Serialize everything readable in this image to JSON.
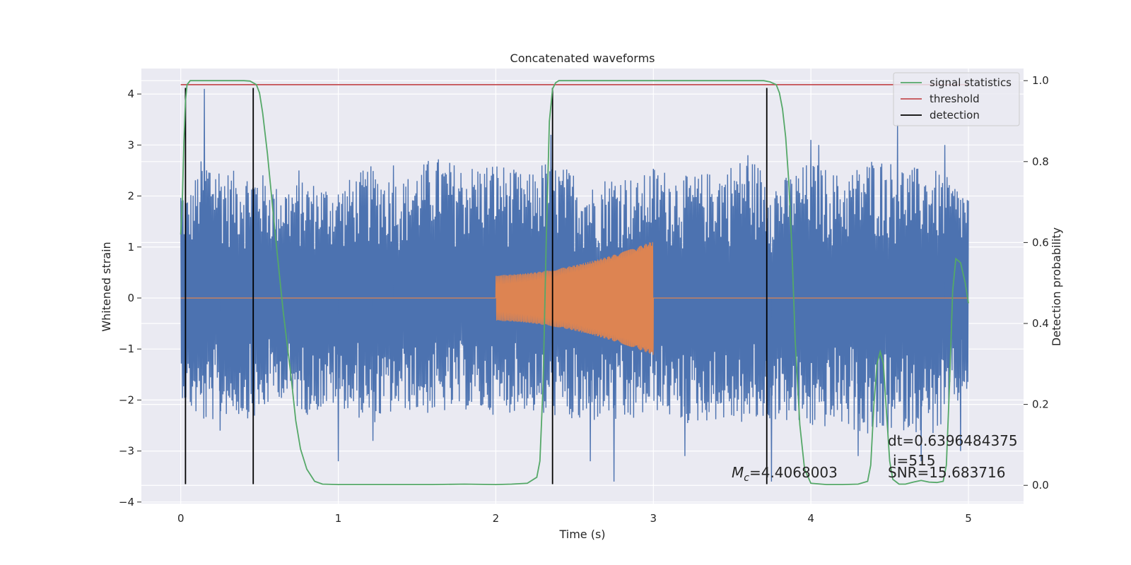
{
  "chart_data": {
    "type": "line",
    "title": "Concatenated waveforms",
    "xlabel": "Time (s)",
    "ylabel": "Whitened strain",
    "y2label": "Detection probability",
    "xlim": [
      -0.25,
      5.35
    ],
    "ylim": [
      -4.03,
      4.5
    ],
    "y2lim": [
      -0.045,
      1.03
    ],
    "xticks": [
      0,
      1,
      2,
      3,
      4,
      5
    ],
    "xtick_labels": [
      "0",
      "1",
      "2",
      "3",
      "4",
      "5"
    ],
    "yticks": [
      -4,
      -3,
      -2,
      -1,
      0,
      1,
      2,
      3,
      4
    ],
    "ytick_labels": [
      "−4",
      "−3",
      "−2",
      "−1",
      "0",
      "1",
      "2",
      "3",
      "4"
    ],
    "y2ticks": [
      0.0,
      0.2,
      0.4,
      0.6,
      0.8,
      1.0
    ],
    "y2tick_labels": [
      "0.0",
      "0.2",
      "0.4",
      "0.6",
      "0.8",
      "1.0"
    ],
    "grid": true,
    "legend_position": "top-right",
    "background": "#eaeaf2",
    "series": [
      {
        "key": "noise",
        "color": "#4c72b0",
        "axis": "left",
        "x_range": [
          0,
          5
        ],
        "envelope": {
          "x": [
            0,
            0.05,
            0.15,
            0.3,
            0.5,
            0.6,
            0.8,
            1.0,
            1.2,
            1.4,
            1.6,
            1.8,
            2.0,
            2.2,
            2.3,
            2.4,
            2.5,
            2.6,
            2.7,
            2.8,
            2.9,
            3.0,
            3.2,
            3.4,
            3.6,
            3.8,
            4.0,
            4.2,
            4.4,
            4.6,
            4.8,
            5.0
          ],
          "upper": [
            2.3,
            2.0,
            2.9,
            2.5,
            2.5,
            2.2,
            2.3,
            2.2,
            2.6,
            2.3,
            2.8,
            2.6,
            2.7,
            2.4,
            2.7,
            2.6,
            2.5,
            2.2,
            2.4,
            2.5,
            2.3,
            2.6,
            2.4,
            2.5,
            2.8,
            2.3,
            2.7,
            2.4,
            2.8,
            2.6,
            2.5,
            2.1
          ],
          "lower": [
            -1.9,
            -2.2,
            -2.5,
            -2.3,
            -2.4,
            -1.9,
            -2.3,
            -2.1,
            -2.5,
            -2.2,
            -2.3,
            -2.2,
            -2.3,
            -2.2,
            -2.4,
            -2.3,
            -2.5,
            -2.5,
            -2.3,
            -2.6,
            -2.4,
            -2.2,
            -2.5,
            -2.4,
            -2.5,
            -2.4,
            -2.6,
            -2.5,
            -2.8,
            -2.6,
            -2.7,
            -1.8
          ]
        },
        "spikes": [
          [
            0.15,
            4.1
          ],
          [
            0.75,
            2.5
          ],
          [
            1.22,
            -2.8
          ],
          [
            1.35,
            2.6
          ],
          [
            2.35,
            3.2
          ],
          [
            2.75,
            -3.6
          ],
          [
            3.6,
            2.8
          ],
          [
            3.75,
            -3.6
          ],
          [
            4.05,
            3.0
          ],
          [
            4.3,
            -3.1
          ],
          [
            4.55,
            3.4
          ],
          [
            4.7,
            -3.2
          ],
          [
            4.85,
            3.0
          ],
          [
            0.25,
            -2.6
          ],
          [
            1.0,
            -3.2
          ],
          [
            2.6,
            -3.2
          ],
          [
            3.2,
            -3.1
          ],
          [
            4.0,
            3.1
          ],
          [
            4.95,
            -3.0
          ]
        ]
      },
      {
        "key": "template",
        "color": "#dd8452",
        "axis": "left",
        "flat": [
          [
            0,
            2
          ],
          [
            3,
            5
          ]
        ],
        "chirp": {
          "start": 2.0,
          "end": 3.0,
          "amp_start": 0.45,
          "amp_end": 1.12,
          "cycles": 120
        }
      },
      {
        "key": "signal",
        "name": "signal statistics",
        "color": "#55a868",
        "axis": "right",
        "x": [
          0.0,
          0.01,
          0.02,
          0.03,
          0.04,
          0.06,
          0.1,
          0.2,
          0.3,
          0.4,
          0.44,
          0.48,
          0.5,
          0.52,
          0.55,
          0.6,
          0.65,
          0.7,
          0.73,
          0.76,
          0.8,
          0.85,
          0.9,
          1.0,
          1.2,
          1.4,
          1.6,
          1.8,
          2.0,
          2.1,
          2.2,
          2.26,
          2.28,
          2.3,
          2.32,
          2.34,
          2.36,
          2.38,
          2.4,
          2.45,
          2.6,
          3.0,
          3.4,
          3.7,
          3.74,
          3.78,
          3.8,
          3.82,
          3.84,
          3.86,
          3.88,
          3.9,
          3.93,
          3.96,
          4.0,
          4.1,
          4.2,
          4.3,
          4.36,
          4.38,
          4.4,
          4.42,
          4.44,
          4.46,
          4.48,
          4.5,
          4.52,
          4.56,
          4.6,
          4.65,
          4.7,
          4.75,
          4.8,
          4.84,
          4.86,
          4.88,
          4.9,
          4.92,
          4.95,
          4.98,
          5.0
        ],
        "y": [
          0.62,
          0.7,
          0.85,
          0.95,
          0.99,
          1.0,
          1.0,
          1.0,
          1.0,
          1.0,
          0.999,
          0.99,
          0.97,
          0.92,
          0.82,
          0.62,
          0.43,
          0.27,
          0.16,
          0.09,
          0.04,
          0.01,
          0.003,
          0.002,
          0.002,
          0.002,
          0.002,
          0.003,
          0.002,
          0.003,
          0.005,
          0.02,
          0.06,
          0.25,
          0.6,
          0.9,
          0.98,
          0.995,
          1.0,
          1.0,
          1.0,
          1.0,
          1.0,
          1.0,
          0.997,
          0.99,
          0.97,
          0.93,
          0.86,
          0.75,
          0.58,
          0.36,
          0.15,
          0.04,
          0.005,
          0.002,
          0.002,
          0.003,
          0.01,
          0.05,
          0.2,
          0.3,
          0.33,
          0.3,
          0.18,
          0.06,
          0.015,
          0.003,
          0.003,
          0.008,
          0.012,
          0.008,
          0.007,
          0.01,
          0.05,
          0.25,
          0.48,
          0.56,
          0.55,
          0.5,
          0.45
        ]
      },
      {
        "key": "threshold",
        "name": "threshold",
        "color": "#c44e52",
        "axis": "right",
        "value": 0.99,
        "x_range": [
          0,
          5
        ]
      },
      {
        "key": "detection",
        "name": "detection",
        "color": "#000000",
        "axis": "left",
        "x": [
          0.03,
          0.46,
          2.36,
          3.72
        ],
        "y_range": [
          -3.65,
          4.12
        ]
      }
    ],
    "legend": [
      "signal statistics",
      "threshold",
      "detection"
    ],
    "annotations": {
      "mc_symbol": "M",
      "mc_subscript": "c",
      "mc_value": "=4.4068003",
      "dt": "dt=0.6396484375",
      "i": "i=515",
      "snr": "SNR=15.683716"
    }
  }
}
